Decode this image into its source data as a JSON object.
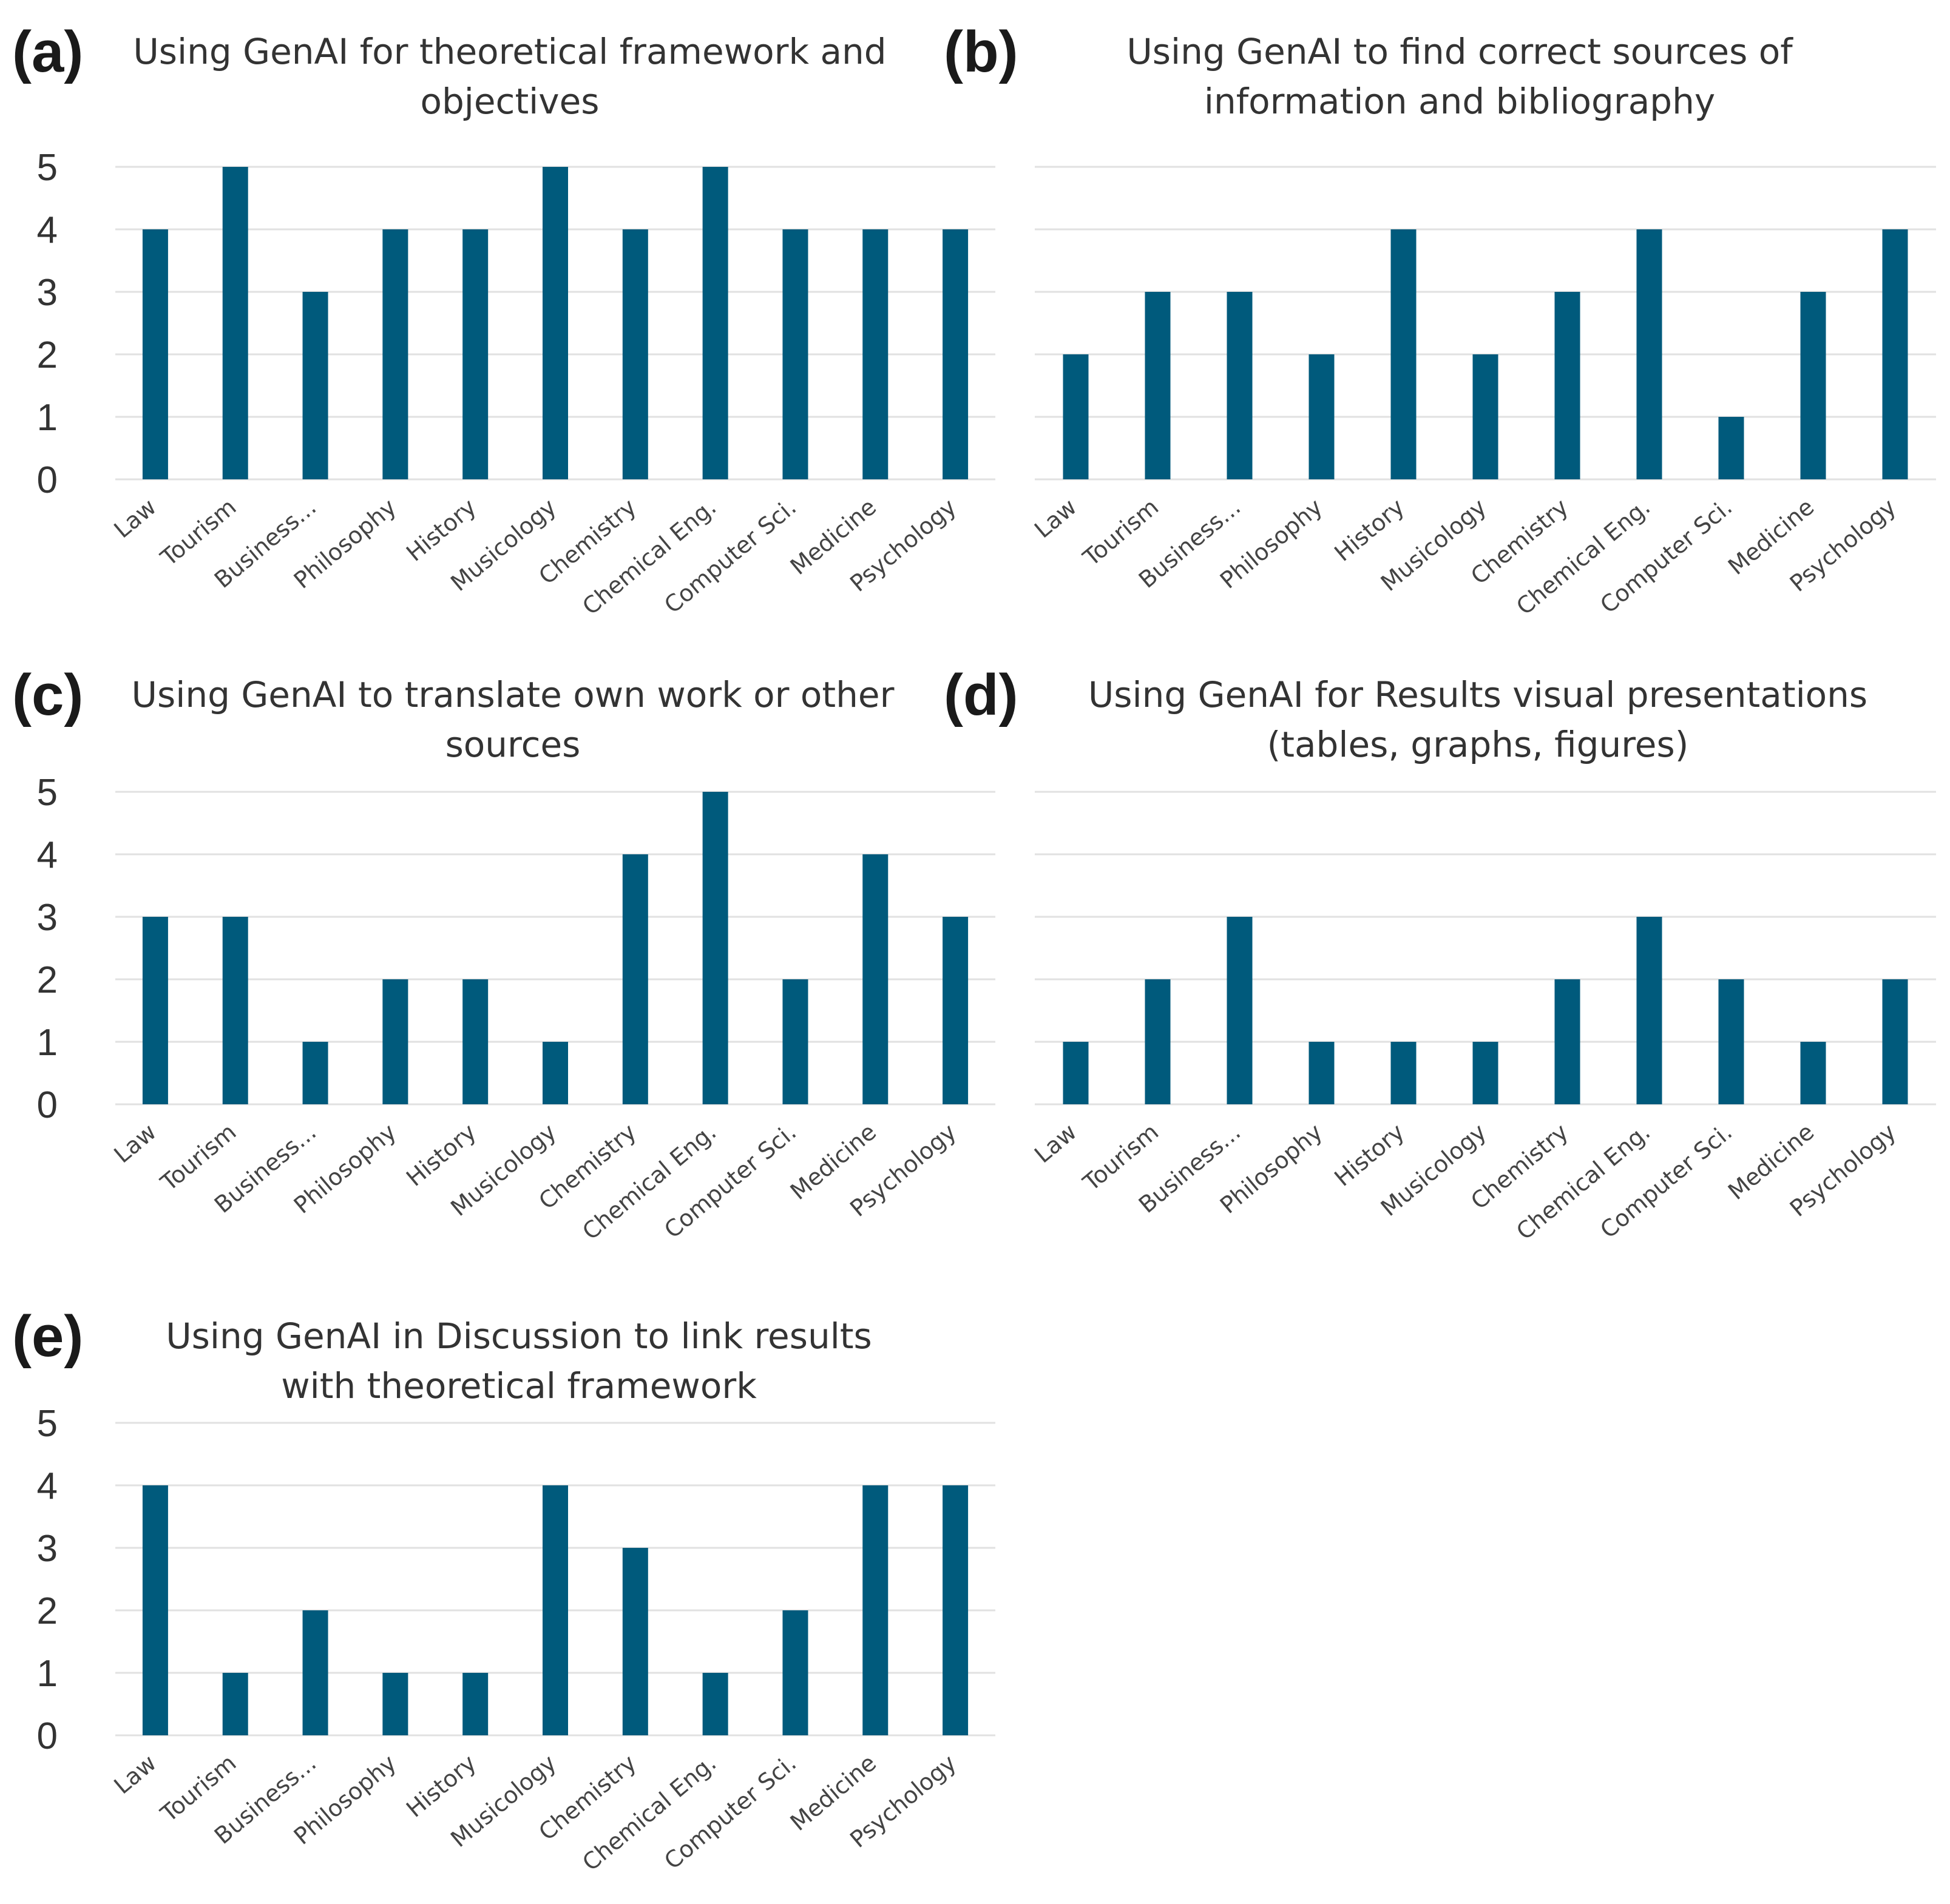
{
  "colors": {
    "bar": "#005A7C",
    "grid": "#E1E1E1",
    "text": "#333333"
  },
  "chart_data": [
    {
      "id": "a",
      "panel_label": "(a)",
      "type": "bar",
      "title_lines": [
        "Using GenAI for theoretical framework and",
        "objectives"
      ],
      "categories": [
        "Law",
        "Tourism",
        "Business...",
        "Philosophy",
        "History",
        "Musicology",
        "Chemistry",
        "Chemical Eng.",
        "Computer Sci.",
        "Medicine",
        "Psychology"
      ],
      "values": [
        4,
        5,
        3,
        4,
        4,
        5,
        4,
        5,
        4,
        4,
        4
      ],
      "yticks": [
        "0",
        "1",
        "2",
        "3",
        "4",
        "5"
      ],
      "ylim": [
        0,
        5
      ],
      "grid": true,
      "xlabel": "",
      "ylabel": ""
    },
    {
      "id": "b",
      "panel_label": "(b)",
      "type": "bar",
      "title_lines": [
        "Using GenAI to find correct sources of",
        "information and bibliography"
      ],
      "categories": [
        "Law",
        "Tourism",
        "Business...",
        "Philosophy",
        "History",
        "Musicology",
        "Chemistry",
        "Chemical Eng.",
        "Computer Sci.",
        "Medicine",
        "Psychology"
      ],
      "values": [
        2,
        3,
        3,
        2,
        4,
        2,
        3,
        4,
        1,
        3,
        4
      ],
      "yticks": [],
      "ylim": [
        0,
        5
      ],
      "grid": true,
      "xlabel": "",
      "ylabel": ""
    },
    {
      "id": "c",
      "panel_label": "(c)",
      "type": "bar",
      "title_lines": [
        "Using GenAI to translate own work or other",
        "sources"
      ],
      "categories": [
        "Law",
        "Tourism",
        "Business...",
        "Philosophy",
        "History",
        "Musicology",
        "Chemistry",
        "Chemical Eng.",
        "Computer Sci.",
        "Medicine",
        "Psychology"
      ],
      "values": [
        3,
        3,
        1,
        2,
        2,
        1,
        4,
        5,
        2,
        4,
        3
      ],
      "yticks": [
        "0",
        "1",
        "2",
        "3",
        "4",
        "5"
      ],
      "ylim": [
        0,
        5
      ],
      "grid": true,
      "xlabel": "",
      "ylabel": ""
    },
    {
      "id": "d",
      "panel_label": "(d)",
      "type": "bar",
      "title_lines": [
        "Using GenAI for Results visual presentations",
        "(tables, graphs, figures)"
      ],
      "categories": [
        "Law",
        "Tourism",
        "Business...",
        "Philosophy",
        "History",
        "Musicology",
        "Chemistry",
        "Chemical Eng.",
        "Computer Sci.",
        "Medicine",
        "Psychology"
      ],
      "values": [
        1,
        2,
        3,
        1,
        1,
        1,
        2,
        3,
        2,
        1,
        2
      ],
      "yticks": [],
      "ylim": [
        0,
        5
      ],
      "grid": true,
      "xlabel": "",
      "ylabel": ""
    },
    {
      "id": "e",
      "panel_label": "(e)",
      "type": "bar",
      "title_lines": [
        "Using GenAI in Discussion to link results",
        "with theoretical framework"
      ],
      "categories": [
        "Law",
        "Tourism",
        "Business...",
        "Philosophy",
        "History",
        "Musicology",
        "Chemistry",
        "Chemical Eng.",
        "Computer Sci.",
        "Medicine",
        "Psychology"
      ],
      "values": [
        4,
        1,
        2,
        1,
        1,
        4,
        3,
        1,
        2,
        4,
        4
      ],
      "yticks": [
        "0",
        "1",
        "2",
        "3",
        "4",
        "5"
      ],
      "ylim": [
        0,
        5
      ],
      "grid": true,
      "xlabel": "",
      "ylabel": ""
    }
  ]
}
